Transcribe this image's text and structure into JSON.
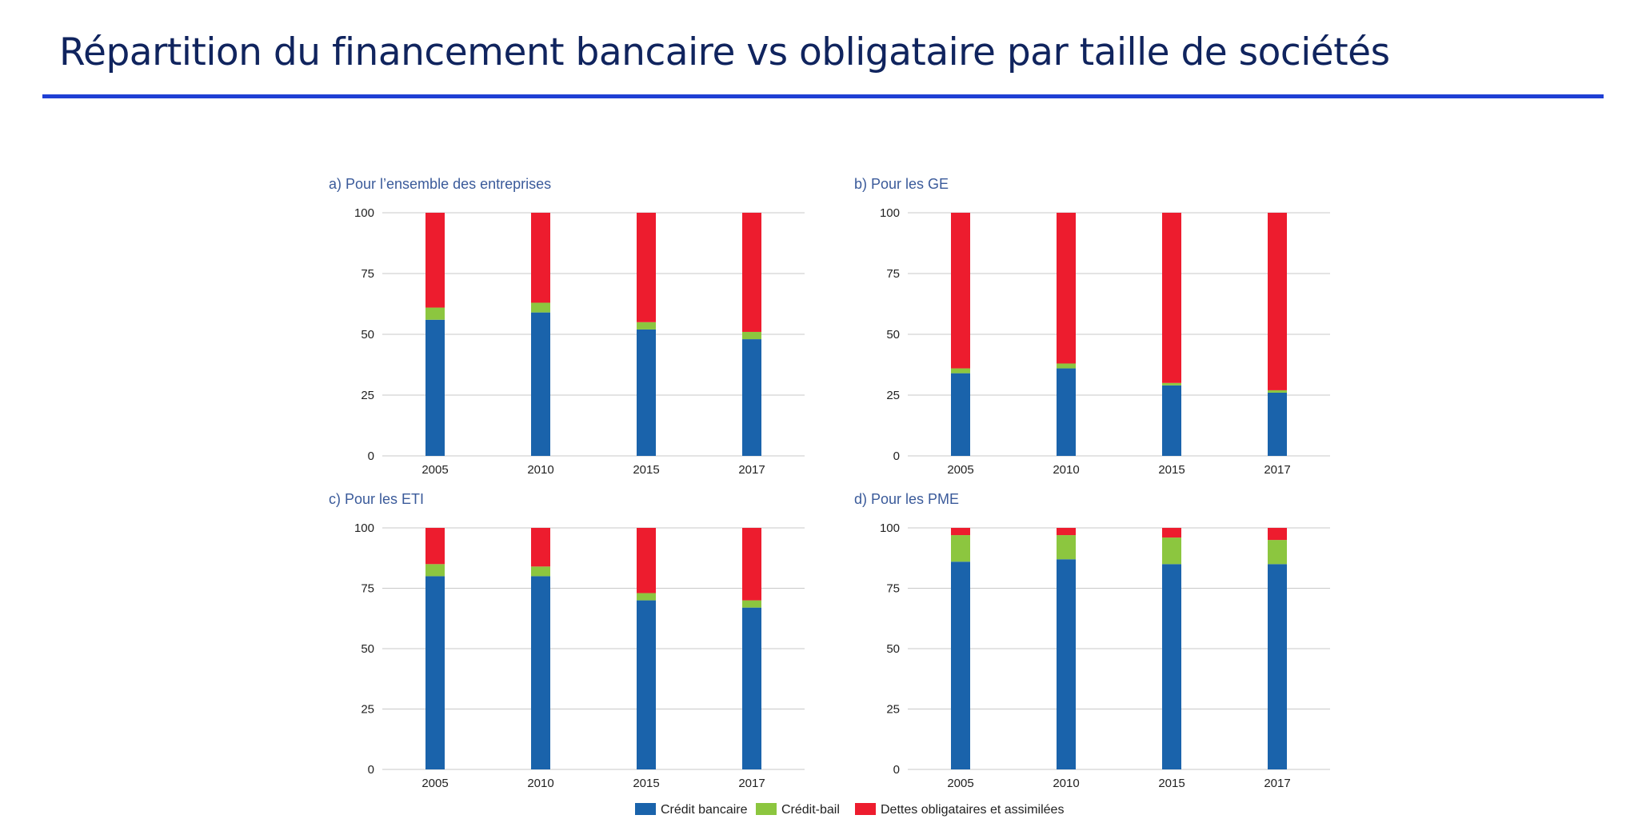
{
  "title": "Répartition du financement bancaire vs obligataire par taille de sociétés",
  "colors": {
    "title": "#10245e",
    "rule": "#1f3fd4",
    "credit_bancaire": "#1a63ab",
    "credit_bail": "#8cc63f",
    "dettes": "#ed1c2e"
  },
  "legend": [
    {
      "key": "credit_bancaire",
      "label": "Crédit bancaire"
    },
    {
      "key": "credit_bail",
      "label": "Crédit-bail"
    },
    {
      "key": "dettes",
      "label": "Dettes obligataires et assimilées"
    }
  ],
  "chart_data": [
    {
      "type": "bar",
      "stacked": true,
      "title": "a) Pour l’ensemble des entreprises",
      "categories": [
        "2005",
        "2010",
        "2015",
        "2017"
      ],
      "ylim": [
        0,
        100
      ],
      "yticks": [
        "0",
        "25",
        "50",
        "75",
        "100"
      ],
      "grid": true,
      "series": [
        {
          "name": "Crédit bancaire",
          "values": [
            56,
            59,
            52,
            48
          ]
        },
        {
          "name": "Crédit-bail",
          "values": [
            5,
            4,
            3,
            3
          ]
        },
        {
          "name": "Dettes obligataires et assimilées",
          "values": [
            39,
            37,
            45,
            49
          ]
        }
      ]
    },
    {
      "type": "bar",
      "stacked": true,
      "title": "b) Pour les GE",
      "categories": [
        "2005",
        "2010",
        "2015",
        "2017"
      ],
      "ylim": [
        0,
        100
      ],
      "yticks": [
        "0",
        "25",
        "50",
        "75",
        "100"
      ],
      "grid": true,
      "series": [
        {
          "name": "Crédit bancaire",
          "values": [
            34,
            36,
            29,
            26
          ]
        },
        {
          "name": "Crédit-bail",
          "values": [
            2,
            2,
            1,
            1
          ]
        },
        {
          "name": "Dettes obligataires et assimilées",
          "values": [
            64,
            62,
            70,
            73
          ]
        }
      ]
    },
    {
      "type": "bar",
      "stacked": true,
      "title": "c) Pour les ETI",
      "categories": [
        "2005",
        "2010",
        "2015",
        "2017"
      ],
      "ylim": [
        0,
        100
      ],
      "yticks": [
        "0",
        "25",
        "50",
        "75",
        "100"
      ],
      "grid": true,
      "series": [
        {
          "name": "Crédit bancaire",
          "values": [
            80,
            80,
            70,
            67
          ]
        },
        {
          "name": "Crédit-bail",
          "values": [
            5,
            4,
            3,
            3
          ]
        },
        {
          "name": "Dettes obligataires et assimilées",
          "values": [
            15,
            16,
            27,
            30
          ]
        }
      ]
    },
    {
      "type": "bar",
      "stacked": true,
      "title": "d) Pour les PME",
      "categories": [
        "2005",
        "2010",
        "2015",
        "2017"
      ],
      "ylim": [
        0,
        100
      ],
      "yticks": [
        "0",
        "25",
        "50",
        "75",
        "100"
      ],
      "grid": true,
      "series": [
        {
          "name": "Crédit bancaire",
          "values": [
            86,
            87,
            85,
            85
          ]
        },
        {
          "name": "Crédit-bail",
          "values": [
            11,
            10,
            11,
            10
          ]
        },
        {
          "name": "Dettes obligataires et assimilées",
          "values": [
            3,
            3,
            4,
            5
          ]
        }
      ]
    }
  ]
}
